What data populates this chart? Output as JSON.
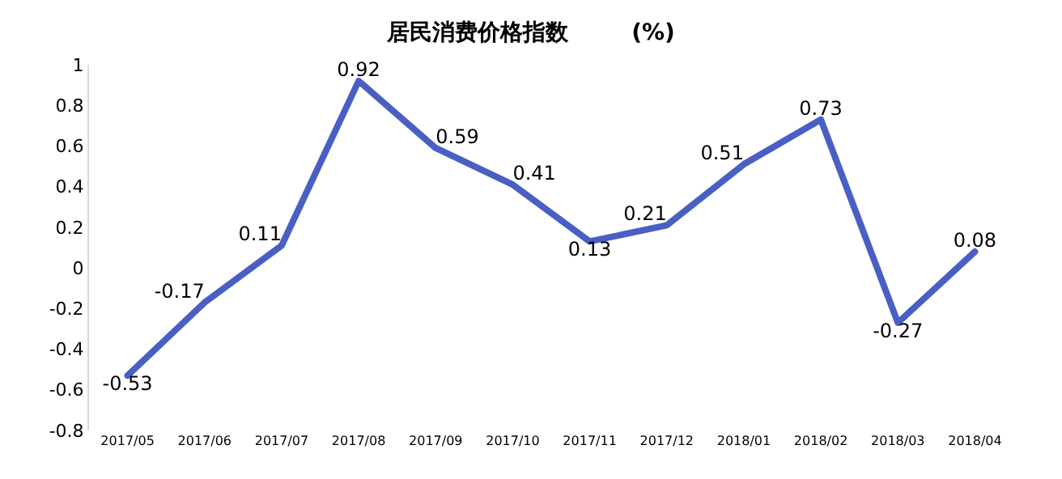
{
  "chart_data": {
    "type": "line",
    "title": "居民消费价格指数        (%)",
    "categories": [
      "2017/05",
      "2017/06",
      "2017/07",
      "2017/08",
      "2017/09",
      "2017/10",
      "2017/11",
      "2017/12",
      "2018/01",
      "2018/02",
      "2018/03",
      "2018/04"
    ],
    "series": [
      {
        "color": "#4a5fc4",
        "values": [
          -0.53,
          -0.17,
          0.11,
          0.92,
          0.59,
          0.41,
          0.13,
          0.21,
          0.51,
          0.73,
          -0.27,
          0.08
        ]
      }
    ],
    "ylim": [
      -0.8,
      1
    ],
    "yticks": [
      -0.8,
      -0.6,
      -0.4,
      -0.2,
      0,
      0.2,
      0.4,
      0.6,
      0.8,
      1
    ],
    "data_labels": true,
    "marker": "none",
    "line_style": "solid"
  }
}
